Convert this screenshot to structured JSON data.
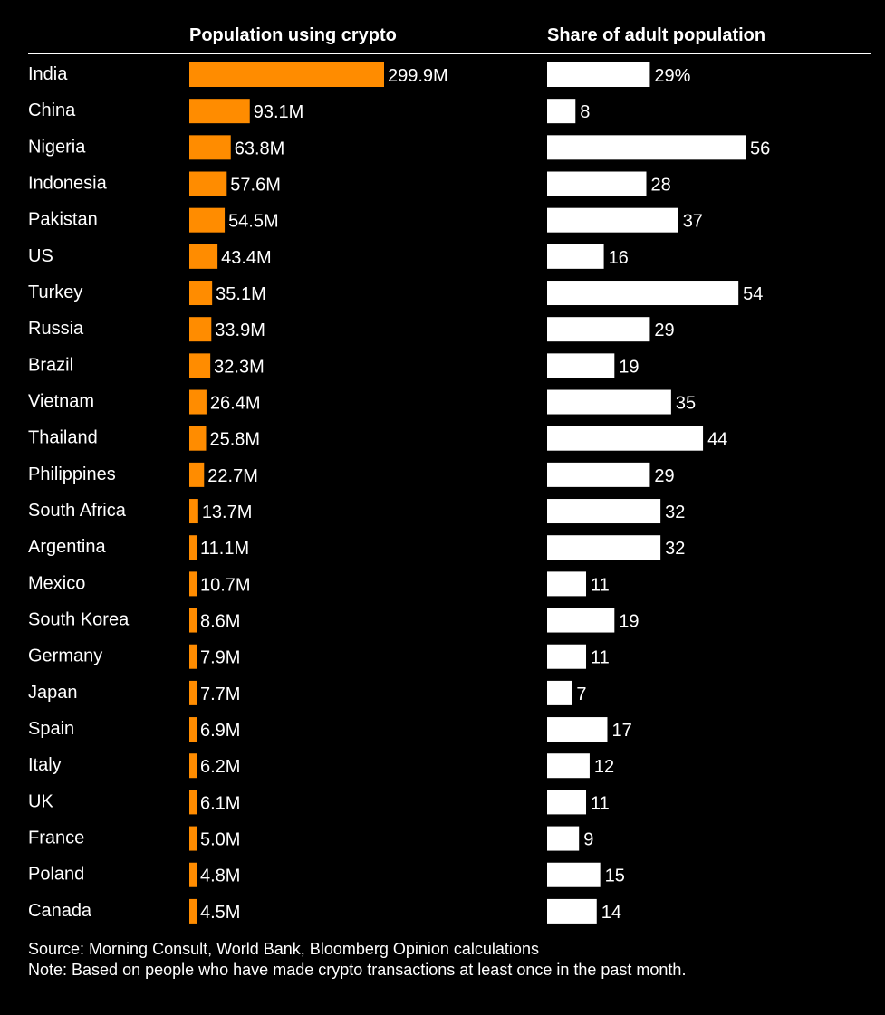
{
  "footer": {
    "source": "Source: Morning Consult, World Bank, Bloomberg Opinion calculations",
    "note": "Note: Based on people who have made crypto transactions at least once in the past month."
  },
  "chart_data": {
    "type": "bar",
    "orientation": "horizontal",
    "grid": false,
    "categories": [
      "India",
      "China",
      "Nigeria",
      "Indonesia",
      "Pakistan",
      "US",
      "Turkey",
      "Russia",
      "Brazil",
      "Vietnam",
      "Thailand",
      "Philippines",
      "South Africa",
      "Argentina",
      "Mexico",
      "South Korea",
      "Germany",
      "Japan",
      "Spain",
      "Italy",
      "UK",
      "France",
      "Poland",
      "Canada"
    ],
    "series": [
      {
        "name": "Population using crypto",
        "color": "#ff8c00",
        "values": [
          299.9,
          93.1,
          63.8,
          57.6,
          54.5,
          43.4,
          35.1,
          33.9,
          32.3,
          26.4,
          25.8,
          22.7,
          13.7,
          11.1,
          10.7,
          8.6,
          7.9,
          7.7,
          6.9,
          6.2,
          6.1,
          5.0,
          4.8,
          4.5
        ],
        "labels": [
          "299.9M",
          "93.1M",
          "63.8M",
          "57.6M",
          "54.5M",
          "43.4M",
          "35.1M",
          "33.9M",
          "32.3M",
          "26.4M",
          "25.8M",
          "22.7M",
          "13.7M",
          "11.1M",
          "10.7M",
          "8.6M",
          "7.9M",
          "7.7M",
          "6.9M",
          "6.2M",
          "6.1M",
          "5.0M",
          "4.8M",
          "4.5M"
        ]
      },
      {
        "name": "Share of adult population",
        "color": "#ffffff",
        "values": [
          29,
          8,
          56,
          28,
          37,
          16,
          54,
          29,
          19,
          35,
          44,
          29,
          32,
          32,
          11,
          19,
          11,
          7,
          17,
          12,
          11,
          9,
          15,
          14
        ],
        "labels": [
          "29%",
          "8",
          "56",
          "28",
          "37",
          "16",
          "54",
          "29",
          "19",
          "35",
          "44",
          "29",
          "32",
          "32",
          "11",
          "19",
          "11",
          "7",
          "17",
          "12",
          "11",
          "9",
          "15",
          "14"
        ]
      }
    ]
  }
}
